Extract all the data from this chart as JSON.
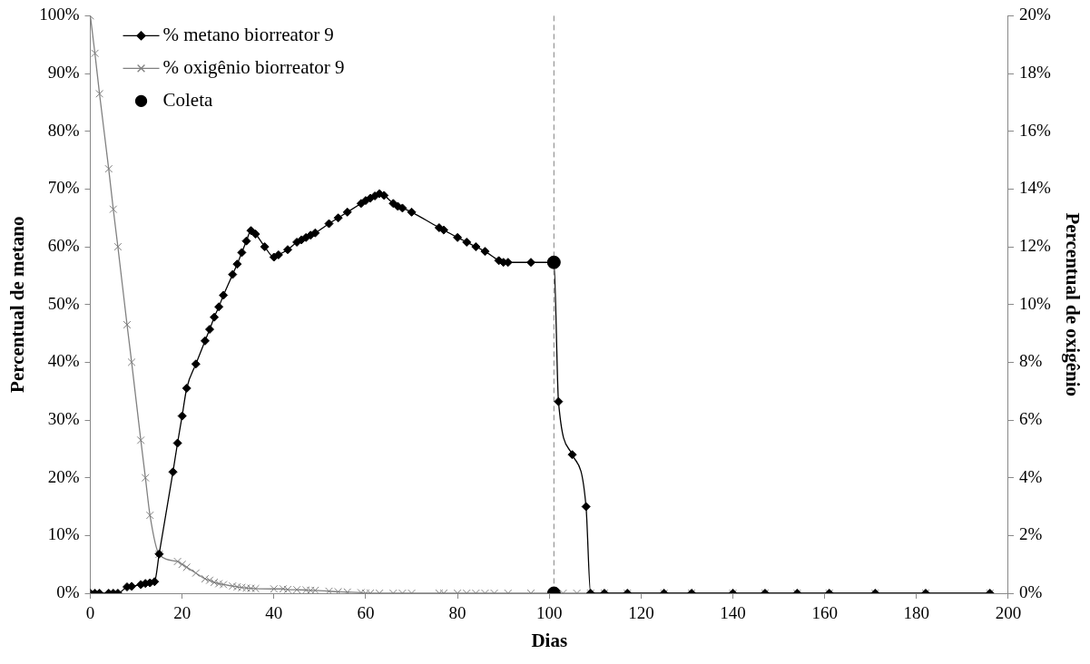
{
  "chart_data": {
    "type": "line",
    "xlabel": "Dias",
    "ylabel": "Percentual de metano",
    "y2label": "Percentual de oxigênio",
    "xlim": [
      0,
      200
    ],
    "xticks": [
      0,
      20,
      40,
      60,
      80,
      100,
      120,
      140,
      160,
      180,
      200
    ],
    "ylim": [
      0,
      100
    ],
    "yticks": [
      {
        "value": 0,
        "label": "0%"
      },
      {
        "value": 10,
        "label": "10%"
      },
      {
        "value": 20,
        "label": "20%"
      },
      {
        "value": 30,
        "label": "30%"
      },
      {
        "value": 40,
        "label": "40%"
      },
      {
        "value": 50,
        "label": "50%"
      },
      {
        "value": 60,
        "label": "60%"
      },
      {
        "value": 70,
        "label": "70%"
      },
      {
        "value": 80,
        "label": "80%"
      },
      {
        "value": 90,
        "label": "90%"
      },
      {
        "value": 100,
        "label": "100%"
      }
    ],
    "y2lim": [
      0,
      20
    ],
    "y2ticks": [
      {
        "value": 0,
        "label": "0%"
      },
      {
        "value": 2,
        "label": "2%"
      },
      {
        "value": 4,
        "label": "4%"
      },
      {
        "value": 6,
        "label": "6%"
      },
      {
        "value": 8,
        "label": "8%"
      },
      {
        "value": 10,
        "label": "10%"
      },
      {
        "value": 12,
        "label": "12%"
      },
      {
        "value": 14,
        "label": "14%"
      },
      {
        "value": 16,
        "label": "16%"
      },
      {
        "value": 18,
        "label": "18%"
      },
      {
        "value": 20,
        "label": "20%"
      }
    ],
    "grid": false,
    "legend": "top left",
    "ref_lines": [
      {
        "axis": "x",
        "value": 101,
        "color": "#808080",
        "line_style": "dashed"
      }
    ],
    "series": [
      {
        "name": "% metano biorreator 9",
        "color": "#000000",
        "marker": "diamond",
        "x": [
          0,
          1,
          2,
          4,
          5,
          6,
          8,
          9,
          11,
          12,
          13,
          14,
          15,
          18,
          19,
          20,
          21,
          23,
          25,
          26,
          27,
          28,
          29,
          31,
          32,
          33,
          34,
          35,
          36,
          38,
          40,
          41,
          43,
          45,
          46,
          47,
          48,
          49,
          52,
          54,
          56,
          59,
          60,
          61,
          62,
          63,
          64,
          66,
          67,
          68,
          70,
          76,
          77,
          80,
          82,
          84,
          86,
          89,
          90,
          91,
          96,
          101,
          102,
          105,
          108,
          109,
          112,
          117,
          125,
          131,
          140,
          147,
          154,
          161,
          171,
          182,
          196
        ],
        "values": [
          0,
          0,
          0,
          0,
          0,
          0,
          1.1,
          1.2,
          1.5,
          1.7,
          1.8,
          2,
          6.8,
          21,
          26,
          30.7,
          35.5,
          39.7,
          43.7,
          45.7,
          47.8,
          49.6,
          51.6,
          55.2,
          57,
          59,
          61,
          62.8,
          62.2,
          60,
          58.2,
          58.6,
          59.5,
          60.8,
          61.2,
          61.6,
          62,
          62.4,
          64,
          65,
          66,
          67.5,
          68,
          68.4,
          68.8,
          69.2,
          68.9,
          67.5,
          67,
          66.7,
          66,
          63.3,
          62.9,
          61.6,
          60.8,
          60,
          59.2,
          57.6,
          57.3,
          57.3,
          57.3,
          57.3,
          33.2,
          24,
          15,
          0,
          0,
          0,
          0,
          0,
          0,
          0,
          0,
          0,
          0,
          0,
          0
        ]
      },
      {
        "name": "% oxigênio biorreator 9",
        "axis": "y2",
        "color": "#808080",
        "marker": "cross",
        "x": [
          0,
          1,
          2,
          4,
          5,
          6,
          8,
          9,
          11,
          12,
          13,
          15,
          19,
          20,
          21,
          23,
          25,
          26,
          27,
          28,
          29,
          31,
          32,
          33,
          34,
          35,
          36,
          40,
          42,
          43,
          45,
          47,
          48,
          49,
          52,
          54,
          56,
          59,
          60,
          61,
          63,
          66,
          68,
          70,
          76,
          77,
          80,
          82,
          84,
          86,
          88,
          91,
          96,
          103,
          106,
          109,
          112,
          117,
          125,
          131,
          140,
          147,
          154,
          161,
          171,
          182,
          196
        ],
        "values": [
          20,
          18.7,
          17.3,
          14.7,
          13.3,
          12,
          9.3,
          8,
          5.3,
          4,
          2.7,
          1.35,
          1.1,
          1,
          0.9,
          0.7,
          0.5,
          0.45,
          0.38,
          0.33,
          0.3,
          0.25,
          0.22,
          0.2,
          0.18,
          0.17,
          0.16,
          0.15,
          0.15,
          0.13,
          0.12,
          0.11,
          0.1,
          0.1,
          0.07,
          0.05,
          0.04,
          0.02,
          0,
          0,
          0,
          0,
          0,
          0,
          0,
          0,
          0,
          0,
          0,
          0,
          0,
          0,
          0,
          0,
          0,
          0,
          0,
          0,
          0,
          0,
          0,
          0,
          0,
          0,
          0,
          0,
          0
        ]
      },
      {
        "name": "Coleta",
        "type": "scatter",
        "color": "#000000",
        "marker": "circle",
        "x": [
          101,
          101
        ],
        "values": [
          57.3,
          0
        ]
      }
    ]
  }
}
